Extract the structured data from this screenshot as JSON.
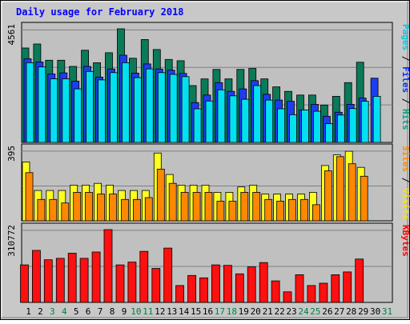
{
  "chart_data": {
    "title": "Daily usage for February 2018",
    "type": "bar",
    "x": {
      "categories": [
        "1",
        "2",
        "3",
        "4",
        "5",
        "6",
        "7",
        "8",
        "9",
        "10",
        "11",
        "12",
        "13",
        "14",
        "15",
        "16",
        "17",
        "18",
        "19",
        "20",
        "21",
        "22",
        "23",
        "24",
        "25",
        "26",
        "27",
        "28",
        "29",
        "30",
        "31"
      ],
      "weekend_days": [
        3,
        4,
        10,
        11,
        17,
        18,
        24,
        25,
        31
      ]
    },
    "panels": [
      {
        "id": "hits",
        "ymax": 4561,
        "ymax_label": "4561",
        "legend": [
          {
            "text": "Pages",
            "color": "#00c8e8"
          },
          {
            "text": " / ",
            "color": "#000000"
          },
          {
            "text": "Files",
            "color": "#0030ff"
          },
          {
            "text": " / ",
            "color": "#000000"
          },
          {
            "text": "Hits",
            "color": "#00a080"
          }
        ],
        "series": [
          {
            "name": "Hits",
            "color": "#0a7a58",
            "values": [
              3790,
              3950,
              3300,
              3300,
              3050,
              3700,
              3200,
              3600,
              4561,
              3380,
              4130,
              3730,
              3330,
              3280,
              2280,
              2550,
              2930,
              2550,
              2930,
              2970,
              2550,
              2230,
              2050,
              1900,
              1900,
              1500,
              1850,
              2400,
              3220,
              null,
              null
            ]
          },
          {
            "name": "Files",
            "color": "#1a3ef0",
            "values": [
              3360,
              3230,
              2750,
              2790,
              2460,
              3050,
              2620,
              2950,
              3500,
              2780,
              3150,
              2950,
              2900,
              2770,
              1600,
              1900,
              2400,
              2050,
              2150,
              2480,
              1930,
              1700,
              1650,
              1300,
              1530,
              1050,
              1210,
              1530,
              1780,
              2580,
              null
            ]
          },
          {
            "name": "Pages",
            "color": "#00e0f0",
            "values": [
              3200,
              3030,
              2550,
              2550,
              2150,
              2850,
              2510,
              2800,
              3200,
              2600,
              2950,
              2800,
              2730,
              2640,
              1350,
              1660,
              2110,
              1870,
              1730,
              2280,
              1700,
              1350,
              1110,
              1300,
              1250,
              750,
              1100,
              1360,
              1650,
              1850,
              null
            ]
          }
        ]
      },
      {
        "id": "visits",
        "ymax": 395,
        "ymax_label": "395",
        "legend": [
          {
            "text": "Sites",
            "color": "#ff8c00"
          },
          {
            "text": " / ",
            "color": "#000000"
          },
          {
            "text": "Visits",
            "color": "#ffe000"
          }
        ],
        "series": [
          {
            "name": "Visits",
            "color": "#ffff20",
            "values": [
              330,
              170,
              170,
              170,
              200,
              200,
              210,
              200,
              170,
              170,
              170,
              380,
              260,
              200,
              200,
              200,
              160,
              160,
              190,
              200,
              150,
              150,
              150,
              150,
              160,
              310,
              370,
              390,
              300,
              null,
              null
            ]
          },
          {
            "name": "Sites",
            "color": "#ff8800",
            "values": [
              270,
              120,
              120,
              100,
              160,
              160,
              150,
              150,
              120,
              120,
              130,
              290,
              210,
              160,
              160,
              160,
              110,
              110,
              160,
              160,
              120,
              110,
              120,
              120,
              90,
              280,
              360,
              320,
              250,
              null,
              null
            ]
          }
        ]
      },
      {
        "id": "kbytes",
        "ymax": 310772,
        "ymax_label": "310772",
        "legend": [
          {
            "text": "KBytes",
            "color": "#ff0000"
          }
        ],
        "series": [
          {
            "name": "KBytes",
            "color": "#ff1010",
            "values": [
              160000,
              222000,
              182000,
              188000,
              210000,
              188000,
              215000,
              310772,
              160000,
              172000,
              218000,
              145000,
              232000,
              72000,
              115000,
              105000,
              160000,
              158000,
              122000,
              152000,
              170000,
              92000,
              45000,
              118000,
              72000,
              82000,
              118000,
              130000,
              185000,
              null,
              null
            ]
          }
        ]
      }
    ]
  }
}
